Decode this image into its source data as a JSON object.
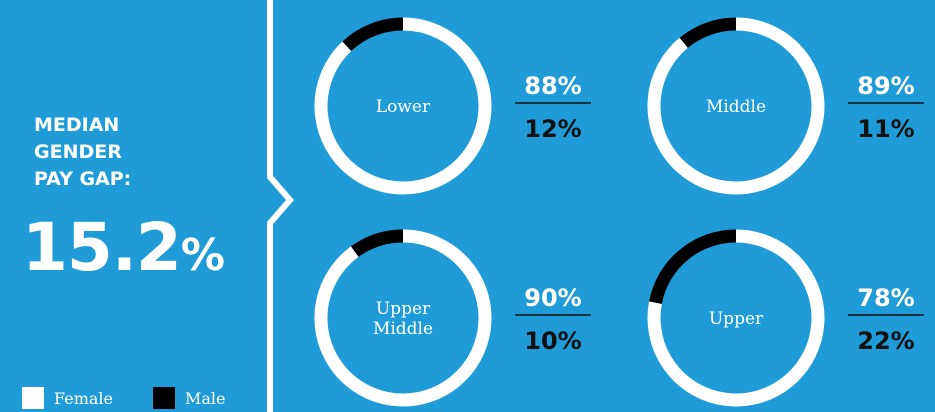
{
  "heading": {
    "line1": "MEDIAN",
    "line2": "GENDER",
    "line3": "PAY GAP:"
  },
  "gap": {
    "value": "15.2",
    "unit": "%"
  },
  "legend": [
    {
      "label": "Female",
      "color": "#ffffff"
    },
    {
      "label": "Male",
      "color": "#000000"
    }
  ],
  "colors": {
    "background": "#1f9cd7",
    "female": "#ffffff",
    "male": "#000000",
    "male_text": "#111111"
  },
  "chart_data": {
    "type": "pie",
    "style": "donut",
    "series_names": [
      "Female",
      "Male"
    ],
    "quartiles": [
      {
        "label": "Lower",
        "female": 88,
        "male": 12,
        "female_label": "88%",
        "male_label": "12%"
      },
      {
        "label": "Middle",
        "female": 89,
        "male": 11,
        "female_label": "89%",
        "male_label": "11%"
      },
      {
        "label": "Upper Middle",
        "female": 90,
        "male": 10,
        "female_label": "90%",
        "male_label": "10%"
      },
      {
        "label": "Upper",
        "female": 78,
        "male": 22,
        "female_label": "78%",
        "male_label": "22%"
      }
    ]
  }
}
